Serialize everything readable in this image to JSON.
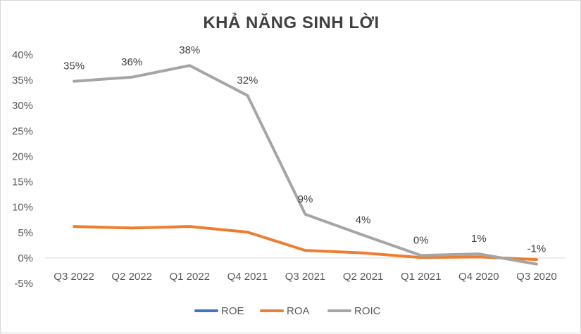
{
  "chart_data": {
    "type": "line",
    "title": "KHẢ NĂNG SINH LỜI",
    "categories": [
      "Q3 2022",
      "Q2 2022",
      "Q1 2022",
      "Q4 2021",
      "Q3 2021",
      "Q2 2021",
      "Q1 2021",
      "Q4 2020",
      "Q3 2020"
    ],
    "y_ticks": [
      "40%",
      "35%",
      "30%",
      "25%",
      "20%",
      "15%",
      "10%",
      "5%",
      "0%",
      "-5%"
    ],
    "ylim": [
      -5,
      40
    ],
    "series": [
      {
        "name": "ROE",
        "color": "#4472c4",
        "values": [
          null,
          null,
          null,
          null,
          null,
          null,
          null,
          null,
          null
        ]
      },
      {
        "name": "ROA",
        "color": "#ed7d31",
        "values": [
          6.2,
          5.9,
          6.2,
          5.1,
          1.5,
          1.0,
          0.1,
          0.2,
          -0.3
        ]
      },
      {
        "name": "ROIC",
        "color": "#a5a5a5",
        "values": [
          34.8,
          35.6,
          37.9,
          32.0,
          8.6,
          4.5,
          0.5,
          0.8,
          -1.2
        ]
      }
    ],
    "data_labels": {
      "series": "ROIC",
      "labels": [
        "35%",
        "36%",
        "38%",
        "32%",
        "9%",
        "4%",
        "0%",
        "1%",
        "-1%"
      ]
    },
    "legend_position": "bottom",
    "grid": false
  }
}
